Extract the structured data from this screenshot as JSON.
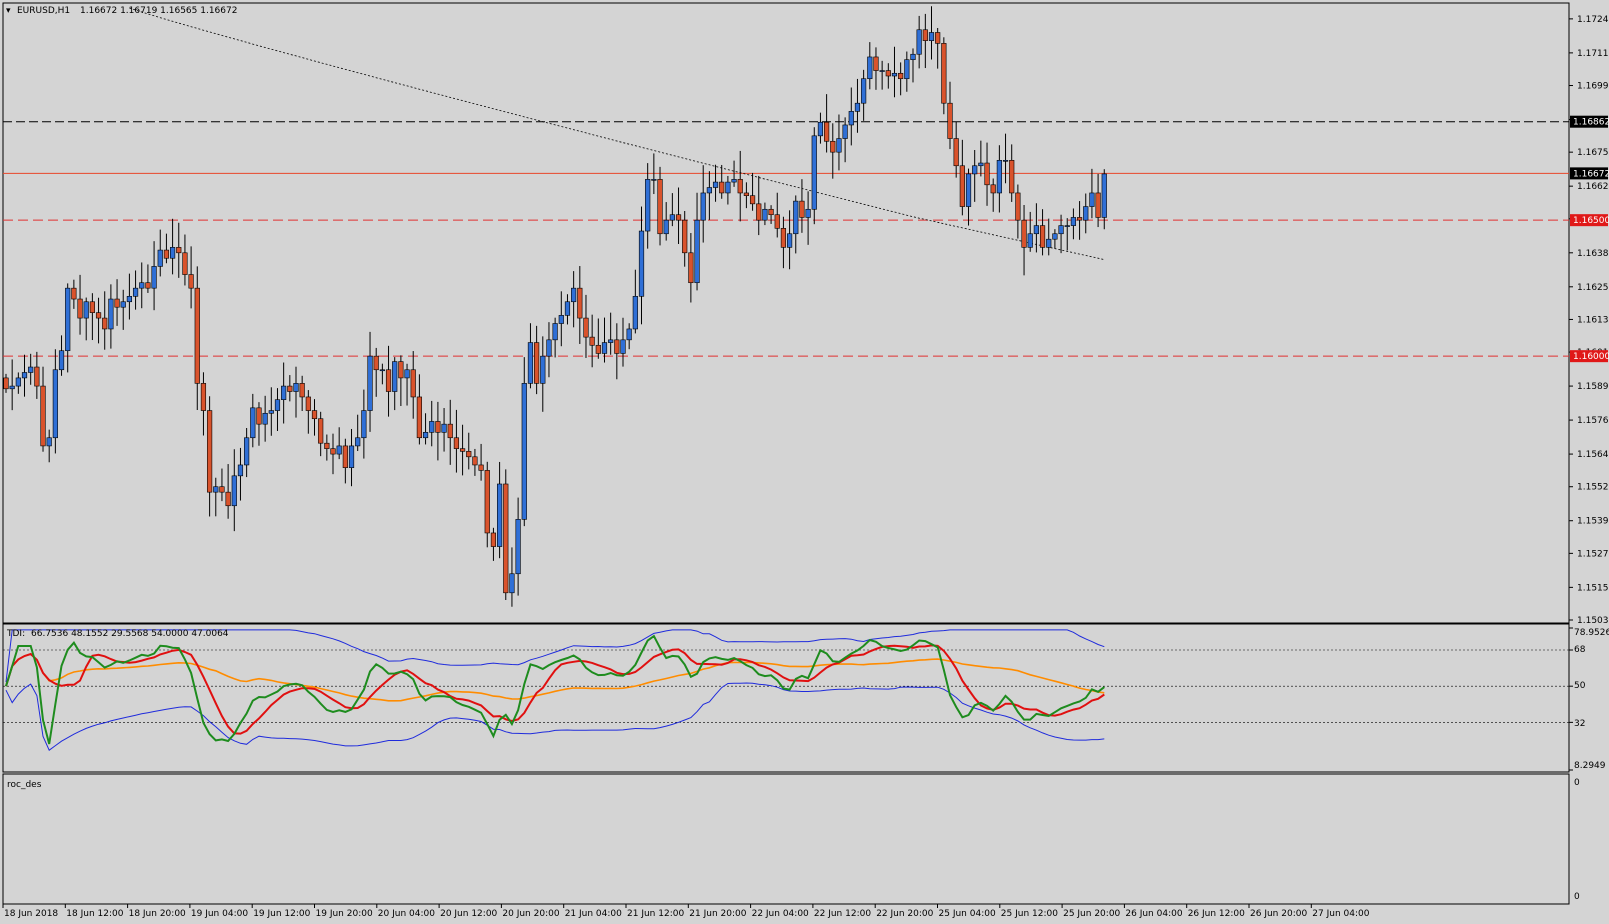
{
  "header": {
    "symbol_label": "EURUSD,H1",
    "ohlc": "1.16672 1.16719 1.16565 1.16672"
  },
  "tdi": {
    "label": "TDI:",
    "values": "66.7536 48.1552 29.5568 54.0000 47.0064",
    "scale_labels": [
      "78.9526",
      "68",
      "50",
      "32",
      "8.2949"
    ]
  },
  "roc": {
    "label": "roc_des",
    "scale_labels": [
      "0",
      "0"
    ]
  },
  "colors": {
    "bull": "#2f6fd6",
    "bear": "#d9532c",
    "background": "#d4d4d4",
    "tdi_green": "#1e8c1e",
    "tdi_red": "#e01010",
    "tdi_orange": "#ff8c00",
    "tdi_band": "#1f2bdc"
  },
  "chart_data": [
    {
      "type": "candlestick",
      "title": "EURUSD,H1",
      "ylim": [
        1.1503,
        1.1728
      ],
      "y_ticks": [
        "1.17240",
        "1.17115",
        "1.16995",
        "1.16870",
        "1.16750",
        "1.16625",
        "1.16505",
        "1.16380",
        "1.16255",
        "1.16135",
        "1.16015",
        "1.15890",
        "1.15765",
        "1.15640",
        "1.15520",
        "1.15395",
        "1.15275",
        "1.15150",
        "1.15030"
      ],
      "horizontal_lines": [
        {
          "price": 1.16862,
          "label": "1.16862",
          "style": "dashed",
          "color": "#000000"
        },
        {
          "price": 1.16672,
          "label": "1.16672",
          "style": "solid",
          "color": "#e8472a"
        },
        {
          "price": 1.165,
          "label": "1.16500",
          "style": "dashed",
          "color": "#e03030"
        },
        {
          "price": 1.16,
          "label": "1.16000",
          "style": "dashed",
          "color": "#e03030"
        }
      ],
      "x_labels": [
        "18 Jun 2018",
        "18 Jun 12:00",
        "18 Jun 20:00",
        "19 Jun 04:00",
        "19 Jun 12:00",
        "19 Jun 20:00",
        "20 Jun 04:00",
        "20 Jun 12:00",
        "20 Jun 20:00",
        "21 Jun 04:00",
        "21 Jun 12:00",
        "21 Jun 20:00",
        "22 Jun 04:00",
        "22 Jun 12:00",
        "22 Jun 20:00",
        "25 Jun 04:00",
        "25 Jun 12:00",
        "25 Jun 20:00",
        "26 Jun 04:00",
        "26 Jun 12:00",
        "26 Jun 20:00",
        "27 Jun 04:00"
      ],
      "close": [
        1.1588,
        1.1589,
        1.1592,
        1.1594,
        1.1596,
        1.1589,
        1.1567,
        1.157,
        1.1595,
        1.1602,
        1.1625,
        1.1621,
        1.1614,
        1.162,
        1.1616,
        1.1614,
        1.161,
        1.1621,
        1.1618,
        1.162,
        1.1622,
        1.1625,
        1.1627,
        1.1625,
        1.1633,
        1.1639,
        1.1636,
        1.164,
        1.1638,
        1.163,
        1.1625,
        1.159,
        1.158,
        1.155,
        1.1552,
        1.155,
        1.1545,
        1.1556,
        1.156,
        1.157,
        1.1581,
        1.1575,
        1.1579,
        1.158,
        1.1584,
        1.1589,
        1.1587,
        1.159,
        1.1585,
        1.158,
        1.1577,
        1.1568,
        1.1566,
        1.1564,
        1.1567,
        1.1559,
        1.1567,
        1.157,
        1.158,
        1.16,
        1.1595,
        1.1595,
        1.1587,
        1.1598,
        1.1592,
        1.1595,
        1.1585,
        1.157,
        1.1572,
        1.1576,
        1.1572,
        1.1575,
        1.157,
        1.1566,
        1.1565,
        1.1563,
        1.156,
        1.1558,
        1.1535,
        1.153,
        1.1553,
        1.1513,
        1.152,
        1.154,
        1.159,
        1.1605,
        1.159,
        1.16,
        1.1606,
        1.1612,
        1.1615,
        1.162,
        1.1625,
        1.1614,
        1.1607,
        1.1604,
        1.1601,
        1.1605,
        1.1606,
        1.1601,
        1.1606,
        1.161,
        1.1622,
        1.1646,
        1.1665,
        1.1665,
        1.1645,
        1.165,
        1.1652,
        1.165,
        1.1638,
        1.1627,
        1.165,
        1.166,
        1.1662,
        1.1664,
        1.166,
        1.1664,
        1.1665,
        1.166,
        1.1659,
        1.1656,
        1.165,
        1.1654,
        1.1652,
        1.1647,
        1.164,
        1.1645,
        1.1657,
        1.1651,
        1.1654,
        1.1681,
        1.1686,
        1.1679,
        1.1675,
        1.168,
        1.1685,
        1.169,
        1.1693,
        1.1702,
        1.171,
        1.1705,
        1.1705,
        1.1703,
        1.1704,
        1.1702,
        1.1709,
        1.1711,
        1.172,
        1.1716,
        1.1719,
        1.1715,
        1.1693,
        1.168,
        1.167,
        1.1655,
        1.1667,
        1.167,
        1.1671,
        1.1663,
        1.166,
        1.1672,
        1.1672,
        1.166,
        1.165,
        1.164,
        1.1645,
        1.1648,
        1.164,
        1.1643,
        1.1645,
        1.1648,
        1.1648,
        1.1651,
        1.165,
        1.1655,
        1.166,
        1.1651,
        1.1667
      ],
      "high_low_note": "wicks approximated around bodies"
    },
    {
      "type": "line",
      "title": "TDI",
      "ylim": [
        8.2949,
        78.9526
      ],
      "levels": [
        68,
        50,
        32
      ],
      "series": [
        {
          "name": "upper band",
          "color": "#1f2bdc"
        },
        {
          "name": "price line",
          "color": "#1e8c1e"
        },
        {
          "name": "signal line",
          "color": "#e01010"
        },
        {
          "name": "market base",
          "color": "#ff8c00"
        },
        {
          "name": "lower band",
          "color": "#1f2bdc"
        }
      ],
      "last_values": [
        66.7536,
        48.1552,
        29.5568,
        54.0,
        47.0064
      ]
    }
  ]
}
